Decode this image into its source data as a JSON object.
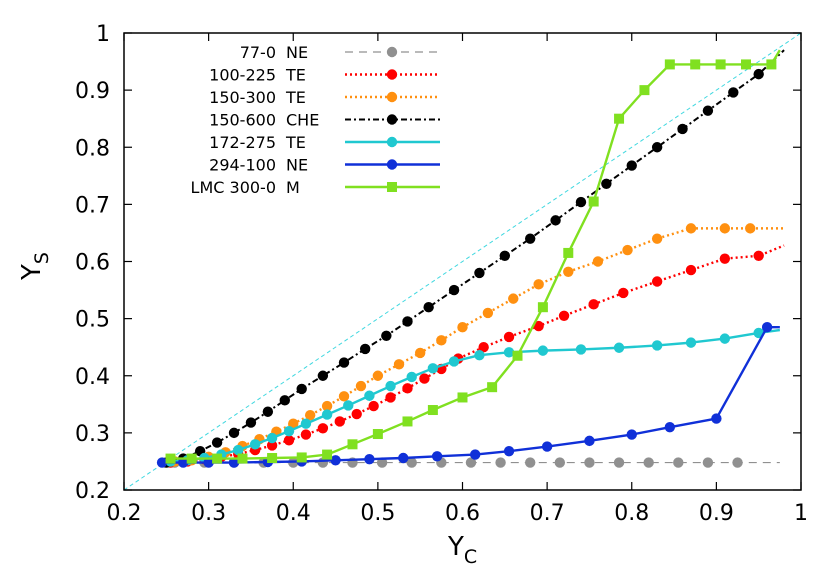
{
  "chart_data": {
    "type": "line",
    "title": "",
    "xlabel": "Y",
    "xlabel_sub": "C",
    "ylabel": "Y",
    "ylabel_sub": "S",
    "xlim": [
      0.2,
      1.0
    ],
    "ylim": [
      0.2,
      1.0
    ],
    "xticks": [
      "0.2",
      "0.3",
      "0.4",
      "0.5",
      "0.6",
      "0.7",
      "0.8",
      "0.9",
      "1"
    ],
    "yticks": [
      "0.2",
      "0.3",
      "0.4",
      "0.5",
      "0.6",
      "0.7",
      "0.8",
      "0.9",
      "1"
    ],
    "legend_position": "top-left",
    "reference_line": {
      "from": [
        0.2,
        0.2
      ],
      "to": [
        1.0,
        1.0
      ],
      "color": "#40d8e0"
    },
    "series": [
      {
        "name": "77-0",
        "tag": "NE",
        "color": "#909090",
        "dash": "8,6",
        "marker": "circle",
        "width": 1.2,
        "x": [
          0.26,
          0.295,
          0.33,
          0.365,
          0.4,
          0.435,
          0.47,
          0.505,
          0.54,
          0.575,
          0.61,
          0.645,
          0.68,
          0.715,
          0.75,
          0.785,
          0.82,
          0.855,
          0.89,
          0.925
        ],
        "y": [
          0.248,
          0.248,
          0.248,
          0.248,
          0.248,
          0.248,
          0.248,
          0.248,
          0.248,
          0.248,
          0.248,
          0.248,
          0.248,
          0.248,
          0.248,
          0.248,
          0.248,
          0.248,
          0.248,
          0.248
        ],
        "x_end": 0.975,
        "y_end": 0.248
      },
      {
        "name": "100-225",
        "tag": "TE",
        "color": "#ff0000",
        "dash": "2,3",
        "marker": "circle",
        "width": 2.4,
        "x": [
          0.255,
          0.275,
          0.295,
          0.315,
          0.335,
          0.355,
          0.375,
          0.395,
          0.415,
          0.435,
          0.455,
          0.475,
          0.495,
          0.515,
          0.535,
          0.555,
          0.575,
          0.595,
          0.625,
          0.655,
          0.69,
          0.72,
          0.755,
          0.79,
          0.83,
          0.87,
          0.91,
          0.95
        ],
        "y": [
          0.248,
          0.25,
          0.254,
          0.258,
          0.263,
          0.27,
          0.278,
          0.287,
          0.297,
          0.308,
          0.32,
          0.333,
          0.347,
          0.362,
          0.378,
          0.395,
          0.412,
          0.43,
          0.45,
          0.468,
          0.487,
          0.505,
          0.525,
          0.545,
          0.565,
          0.585,
          0.605,
          0.61
        ],
        "x_end": 0.98,
        "y_end": 0.628
      },
      {
        "name": "150-300",
        "tag": "TE",
        "color": "#ff9010",
        "dash": "2,3",
        "marker": "circle",
        "width": 2.4,
        "x": [
          0.26,
          0.28,
          0.3,
          0.32,
          0.34,
          0.36,
          0.38,
          0.4,
          0.42,
          0.44,
          0.46,
          0.48,
          0.5,
          0.525,
          0.55,
          0.575,
          0.6,
          0.63,
          0.66,
          0.69,
          0.725,
          0.76,
          0.795,
          0.83,
          0.87,
          0.91,
          0.94
        ],
        "y": [
          0.25,
          0.252,
          0.258,
          0.266,
          0.277,
          0.289,
          0.302,
          0.316,
          0.331,
          0.347,
          0.364,
          0.382,
          0.4,
          0.42,
          0.44,
          0.462,
          0.485,
          0.51,
          0.535,
          0.56,
          0.582,
          0.6,
          0.62,
          0.64,
          0.658,
          0.658,
          0.658
        ],
        "x_end": 0.98,
        "y_end": 0.658
      },
      {
        "name": "150-600",
        "tag": "CHE",
        "color": "#000000",
        "dash": "6,3,2,3",
        "marker": "circle",
        "width": 2.0,
        "x": [
          0.25,
          0.27,
          0.29,
          0.31,
          0.33,
          0.35,
          0.37,
          0.39,
          0.41,
          0.435,
          0.46,
          0.485,
          0.51,
          0.535,
          0.56,
          0.59,
          0.62,
          0.65,
          0.68,
          0.71,
          0.74,
          0.77,
          0.8,
          0.83,
          0.86,
          0.89,
          0.92,
          0.95
        ],
        "y": [
          0.248,
          0.255,
          0.268,
          0.283,
          0.3,
          0.318,
          0.337,
          0.357,
          0.377,
          0.4,
          0.423,
          0.447,
          0.47,
          0.495,
          0.52,
          0.55,
          0.58,
          0.61,
          0.64,
          0.672,
          0.704,
          0.736,
          0.768,
          0.8,
          0.832,
          0.864,
          0.896,
          0.928
        ],
        "x_end": 0.98,
        "y_end": 0.97
      },
      {
        "name": "172-275",
        "tag": "TE",
        "color": "#20c8d0",
        "dash": "",
        "marker": "circle",
        "width": 2.4,
        "x": [
          0.255,
          0.275,
          0.295,
          0.315,
          0.335,
          0.355,
          0.375,
          0.395,
          0.415,
          0.44,
          0.465,
          0.49,
          0.515,
          0.54,
          0.565,
          0.59,
          0.62,
          0.655,
          0.695,
          0.74,
          0.785,
          0.83,
          0.87,
          0.91,
          0.95
        ],
        "y": [
          0.25,
          0.252,
          0.256,
          0.262,
          0.27,
          0.28,
          0.291,
          0.303,
          0.316,
          0.332,
          0.348,
          0.365,
          0.382,
          0.398,
          0.413,
          0.425,
          0.436,
          0.441,
          0.444,
          0.446,
          0.449,
          0.453,
          0.458,
          0.465,
          0.475
        ],
        "x_end": 0.975,
        "y_end": 0.48
      },
      {
        "name": "294-100",
        "tag": "NE",
        "color": "#1030d8",
        "dash": "",
        "marker": "circle",
        "width": 2.4,
        "x": [
          0.245,
          0.27,
          0.3,
          0.33,
          0.37,
          0.41,
          0.45,
          0.49,
          0.53,
          0.57,
          0.615,
          0.655,
          0.7,
          0.75,
          0.8,
          0.845,
          0.9,
          0.96
        ],
        "y": [
          0.248,
          0.248,
          0.248,
          0.248,
          0.249,
          0.25,
          0.252,
          0.254,
          0.256,
          0.259,
          0.262,
          0.268,
          0.276,
          0.286,
          0.297,
          0.31,
          0.325,
          0.485
        ],
        "x_end": 0.975,
        "y_end": 0.485
      },
      {
        "name": "LMC 300-0",
        "tag": "M",
        "color": "#80e020",
        "dash": "",
        "marker": "square",
        "width": 2.4,
        "x": [
          0.255,
          0.28,
          0.31,
          0.34,
          0.375,
          0.41,
          0.44,
          0.47,
          0.5,
          0.535,
          0.565,
          0.6,
          0.635,
          0.665,
          0.695,
          0.725,
          0.755,
          0.785,
          0.815,
          0.845,
          0.875,
          0.905,
          0.935,
          0.965
        ],
        "y": [
          0.255,
          0.255,
          0.255,
          0.255,
          0.256,
          0.257,
          0.262,
          0.28,
          0.298,
          0.32,
          0.34,
          0.362,
          0.38,
          0.435,
          0.52,
          0.615,
          0.705,
          0.85,
          0.9,
          0.945,
          0.945,
          0.945,
          0.945,
          0.945
        ],
        "x_end": 0.975,
        "y_end": 0.97
      }
    ]
  }
}
